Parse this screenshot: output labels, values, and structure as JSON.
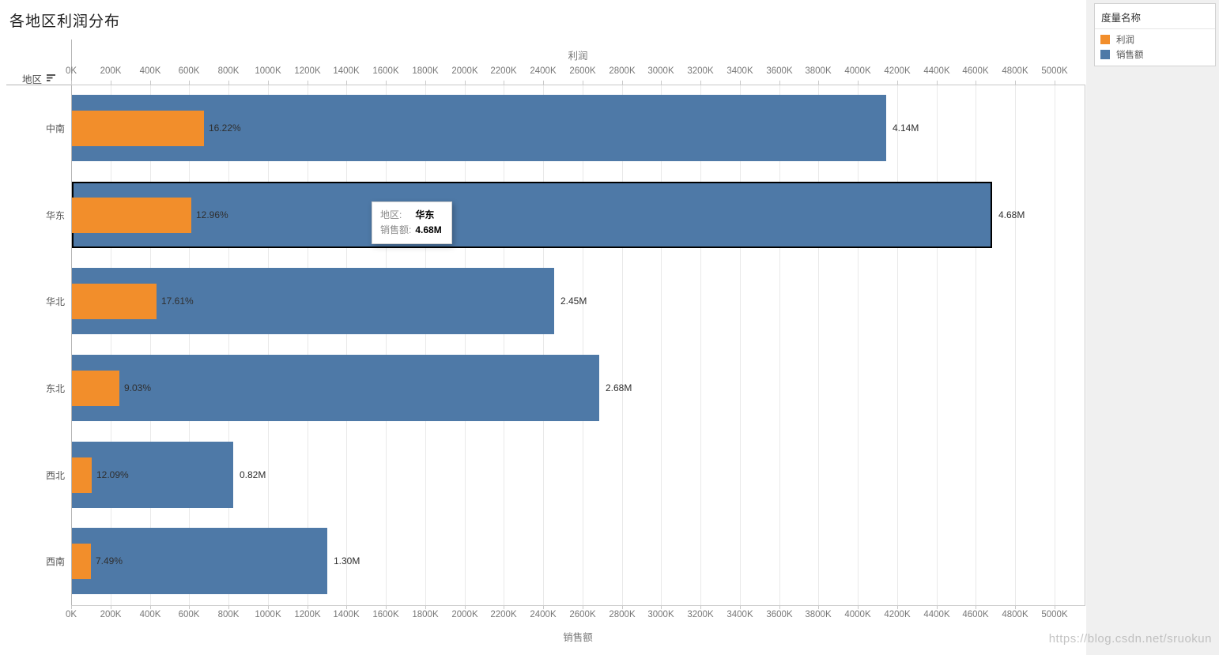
{
  "title": "各地区利润分布",
  "row_header": {
    "label": "地区"
  },
  "axes": {
    "top_title": "利润",
    "bottom_title": "销售额",
    "tick_labels": [
      "0K",
      "200K",
      "400K",
      "600K",
      "800K",
      "1000K",
      "1200K",
      "1400K",
      "1600K",
      "1800K",
      "2000K",
      "2200K",
      "2400K",
      "2600K",
      "2800K",
      "3000K",
      "3200K",
      "3400K",
      "3600K",
      "3800K",
      "4000K",
      "4200K",
      "4400K",
      "4600K",
      "4800K",
      "5000K"
    ],
    "tick_step_k": 200
  },
  "legend": {
    "title": "度量名称",
    "items": [
      {
        "label": "利润",
        "color": "#f28e2b"
      },
      {
        "label": "销售额",
        "color": "#4e79a7"
      }
    ]
  },
  "tooltip": {
    "rows": [
      {
        "label": "地区:",
        "value": "华东"
      },
      {
        "label": "销售额:",
        "value": "4.68M"
      }
    ]
  },
  "watermark": "https://blog.csdn.net/sruokun",
  "colors": {
    "profit": "#f28e2b",
    "sales": "#4e79a7",
    "selected_border": "#000000"
  },
  "chart_data": {
    "type": "bar",
    "orientation": "horizontal",
    "title": "各地区利润分布",
    "xlabel_top": "利润",
    "xlabel_bottom": "销售额",
    "x_axis": {
      "min_k": 0,
      "max_k": 5153,
      "tick_step_k": 200,
      "gridlines": true
    },
    "categories": [
      "中南",
      "华东",
      "华北",
      "东北",
      "西北",
      "西南"
    ],
    "series": [
      {
        "name": "销售额",
        "color": "#4e79a7",
        "values_k": [
          4140,
          4680,
          2450,
          2680,
          820,
          1300
        ],
        "labels": [
          "4.14M",
          "4.68M",
          "2.45M",
          "2.68M",
          "0.82M",
          "1.30M"
        ]
      },
      {
        "name": "利润",
        "color": "#f28e2b",
        "values_k": [
          671,
          606,
          431,
          242,
          99,
          97
        ],
        "labels": [
          "16.22%",
          "12.96%",
          "17.61%",
          "9.03%",
          "12.09%",
          "7.49%"
        ]
      }
    ],
    "selected_category": "华东",
    "legend_position": "top-right"
  }
}
